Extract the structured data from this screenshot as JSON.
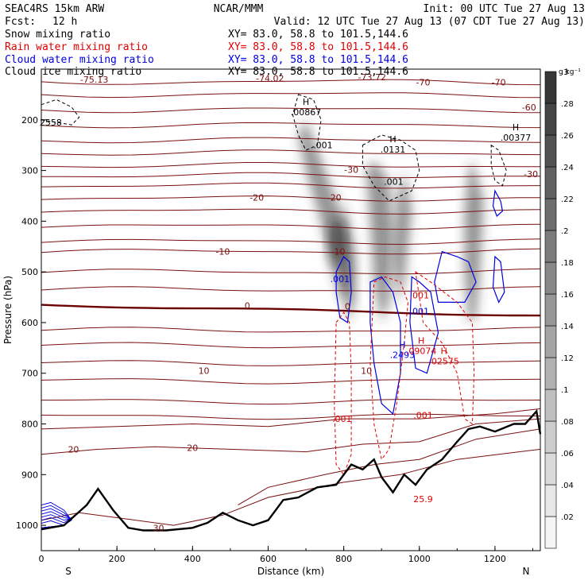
{
  "header": {
    "model": "SEAC4RS 15km ARW",
    "org": "NCAR/MMM",
    "init": "Init: 00 UTC Tue 27 Aug 13",
    "fcst_label": "Fcst:",
    "fcst_value": "12 h",
    "valid": "Valid: 12 UTC Tue 27 Aug 13 (07 CDT Tue 27 Aug 13)"
  },
  "fields": [
    {
      "name": "Snow mixing ratio",
      "xy": "XY=  83.0, 58.8 to 101.5,144.6",
      "color": "#000000"
    },
    {
      "name": "Rain water mixing ratio",
      "xy": "XY=  83.0, 58.8 to 101.5,144.6",
      "color": "#e00000"
    },
    {
      "name": "Cloud water mixing ratio",
      "xy": "XY=  83.0, 58.8 to 101.5,144.6",
      "color": "#0000e0"
    },
    {
      "name": "Cloud ice mixing ratio",
      "xy": "XY=  83.0, 58.8 to 101.5,144.6",
      "color": "#000000"
    }
  ],
  "chart_data": {
    "type": "cross-section",
    "xlabel": "Distance (km)",
    "ylabel": "Pressure (hPa)",
    "xlim": [
      0,
      1320
    ],
    "ylim": [
      1050,
      100
    ],
    "x_ticks": [
      0,
      200,
      400,
      600,
      800,
      1000,
      1200
    ],
    "y_ticks": [
      200,
      300,
      400,
      500,
      600,
      700,
      800,
      900,
      1000
    ],
    "left_end": "S",
    "right_end": "N",
    "colorbar": {
      "unit": "g kg⁻¹",
      "ticks": [
        ".02",
        ".04",
        ".06",
        ".08",
        ".1",
        ".12",
        ".14",
        ".16",
        ".18",
        ".2",
        ".22",
        ".24",
        ".26",
        ".28",
        ".3"
      ]
    },
    "temperature_labels": [
      {
        "text": "-75.13",
        "x": 140,
        "p": 120
      },
      {
        "text": "-74.02",
        "x": 605,
        "p": 118
      },
      {
        "text": "-73.72",
        "x": 875,
        "p": 116
      },
      {
        "text": "-70",
        "x": 1010,
        "p": 126
      },
      {
        "text": "-70",
        "x": 1210,
        "p": 126
      },
      {
        "text": "-60",
        "x": 1290,
        "p": 175
      },
      {
        "text": "-30",
        "x": 820,
        "p": 298
      },
      {
        "text": "-30",
        "x": 1295,
        "p": 307
      },
      {
        "text": "-20",
        "x": 570,
        "p": 353
      },
      {
        "text": "-20",
        "x": 775,
        "p": 353
      },
      {
        "text": "-10",
        "x": 480,
        "p": 460
      },
      {
        "text": "-10",
        "x": 785,
        "p": 460
      },
      {
        "text": "0",
        "x": 545,
        "p": 566
      },
      {
        "text": "0",
        "x": 810,
        "p": 568
      },
      {
        "text": "10",
        "x": 430,
        "p": 695
      },
      {
        "text": "10",
        "x": 860,
        "p": 695
      },
      {
        "text": "20",
        "x": 85,
        "p": 850
      },
      {
        "text": "20",
        "x": 400,
        "p": 847
      },
      {
        "text": "30",
        "x": 310,
        "p": 1005
      }
    ],
    "extrema_labels": [
      {
        "kind": "H",
        "text": ".00867",
        "x": 700,
        "p": 186,
        "color": "#000000"
      },
      {
        "kind": "H",
        "text": ".0131",
        "x": 930,
        "p": 260,
        "color": "#000000"
      },
      {
        "kind": "H",
        "text": ".00377",
        "x": 1255,
        "p": 236,
        "color": "#000000"
      },
      {
        "kind": "H",
        "text": ".2493",
        "x": 955,
        "p": 665,
        "color": "#0000e0"
      },
      {
        "kind": "H",
        "text": ".09074",
        "x": 1005,
        "p": 657,
        "color": "#e00000"
      },
      {
        "kind": "H",
        "text": ".02575",
        "x": 1065,
        "p": 678,
        "color": "#e00000"
      },
      {
        "kind": "",
        "text": "25.9",
        "x": 1010,
        "p": 950,
        "color": "#e00000"
      }
    ],
    "contour_labels": [
      {
        "text": "2558",
        "x": 25,
        "p": 205,
        "color": "#000000"
      },
      {
        "text": ".001",
        "x": 745,
        "p": 250,
        "color": "#000000"
      },
      {
        "text": ".001",
        "x": 932,
        "p": 322,
        "color": "#000000"
      },
      {
        "text": ".001",
        "x": 790,
        "p": 514,
        "color": "#0000e0"
      },
      {
        "text": ".001",
        "x": 1000,
        "p": 546,
        "color": "#e00000"
      },
      {
        "text": ".001",
        "x": 1000,
        "p": 577,
        "color": "#0000e0"
      },
      {
        "text": ".001",
        "x": 795,
        "p": 790,
        "color": "#e00000"
      },
      {
        "text": ".001",
        "x": 1010,
        "p": 783,
        "color": "#e00000"
      }
    ]
  }
}
